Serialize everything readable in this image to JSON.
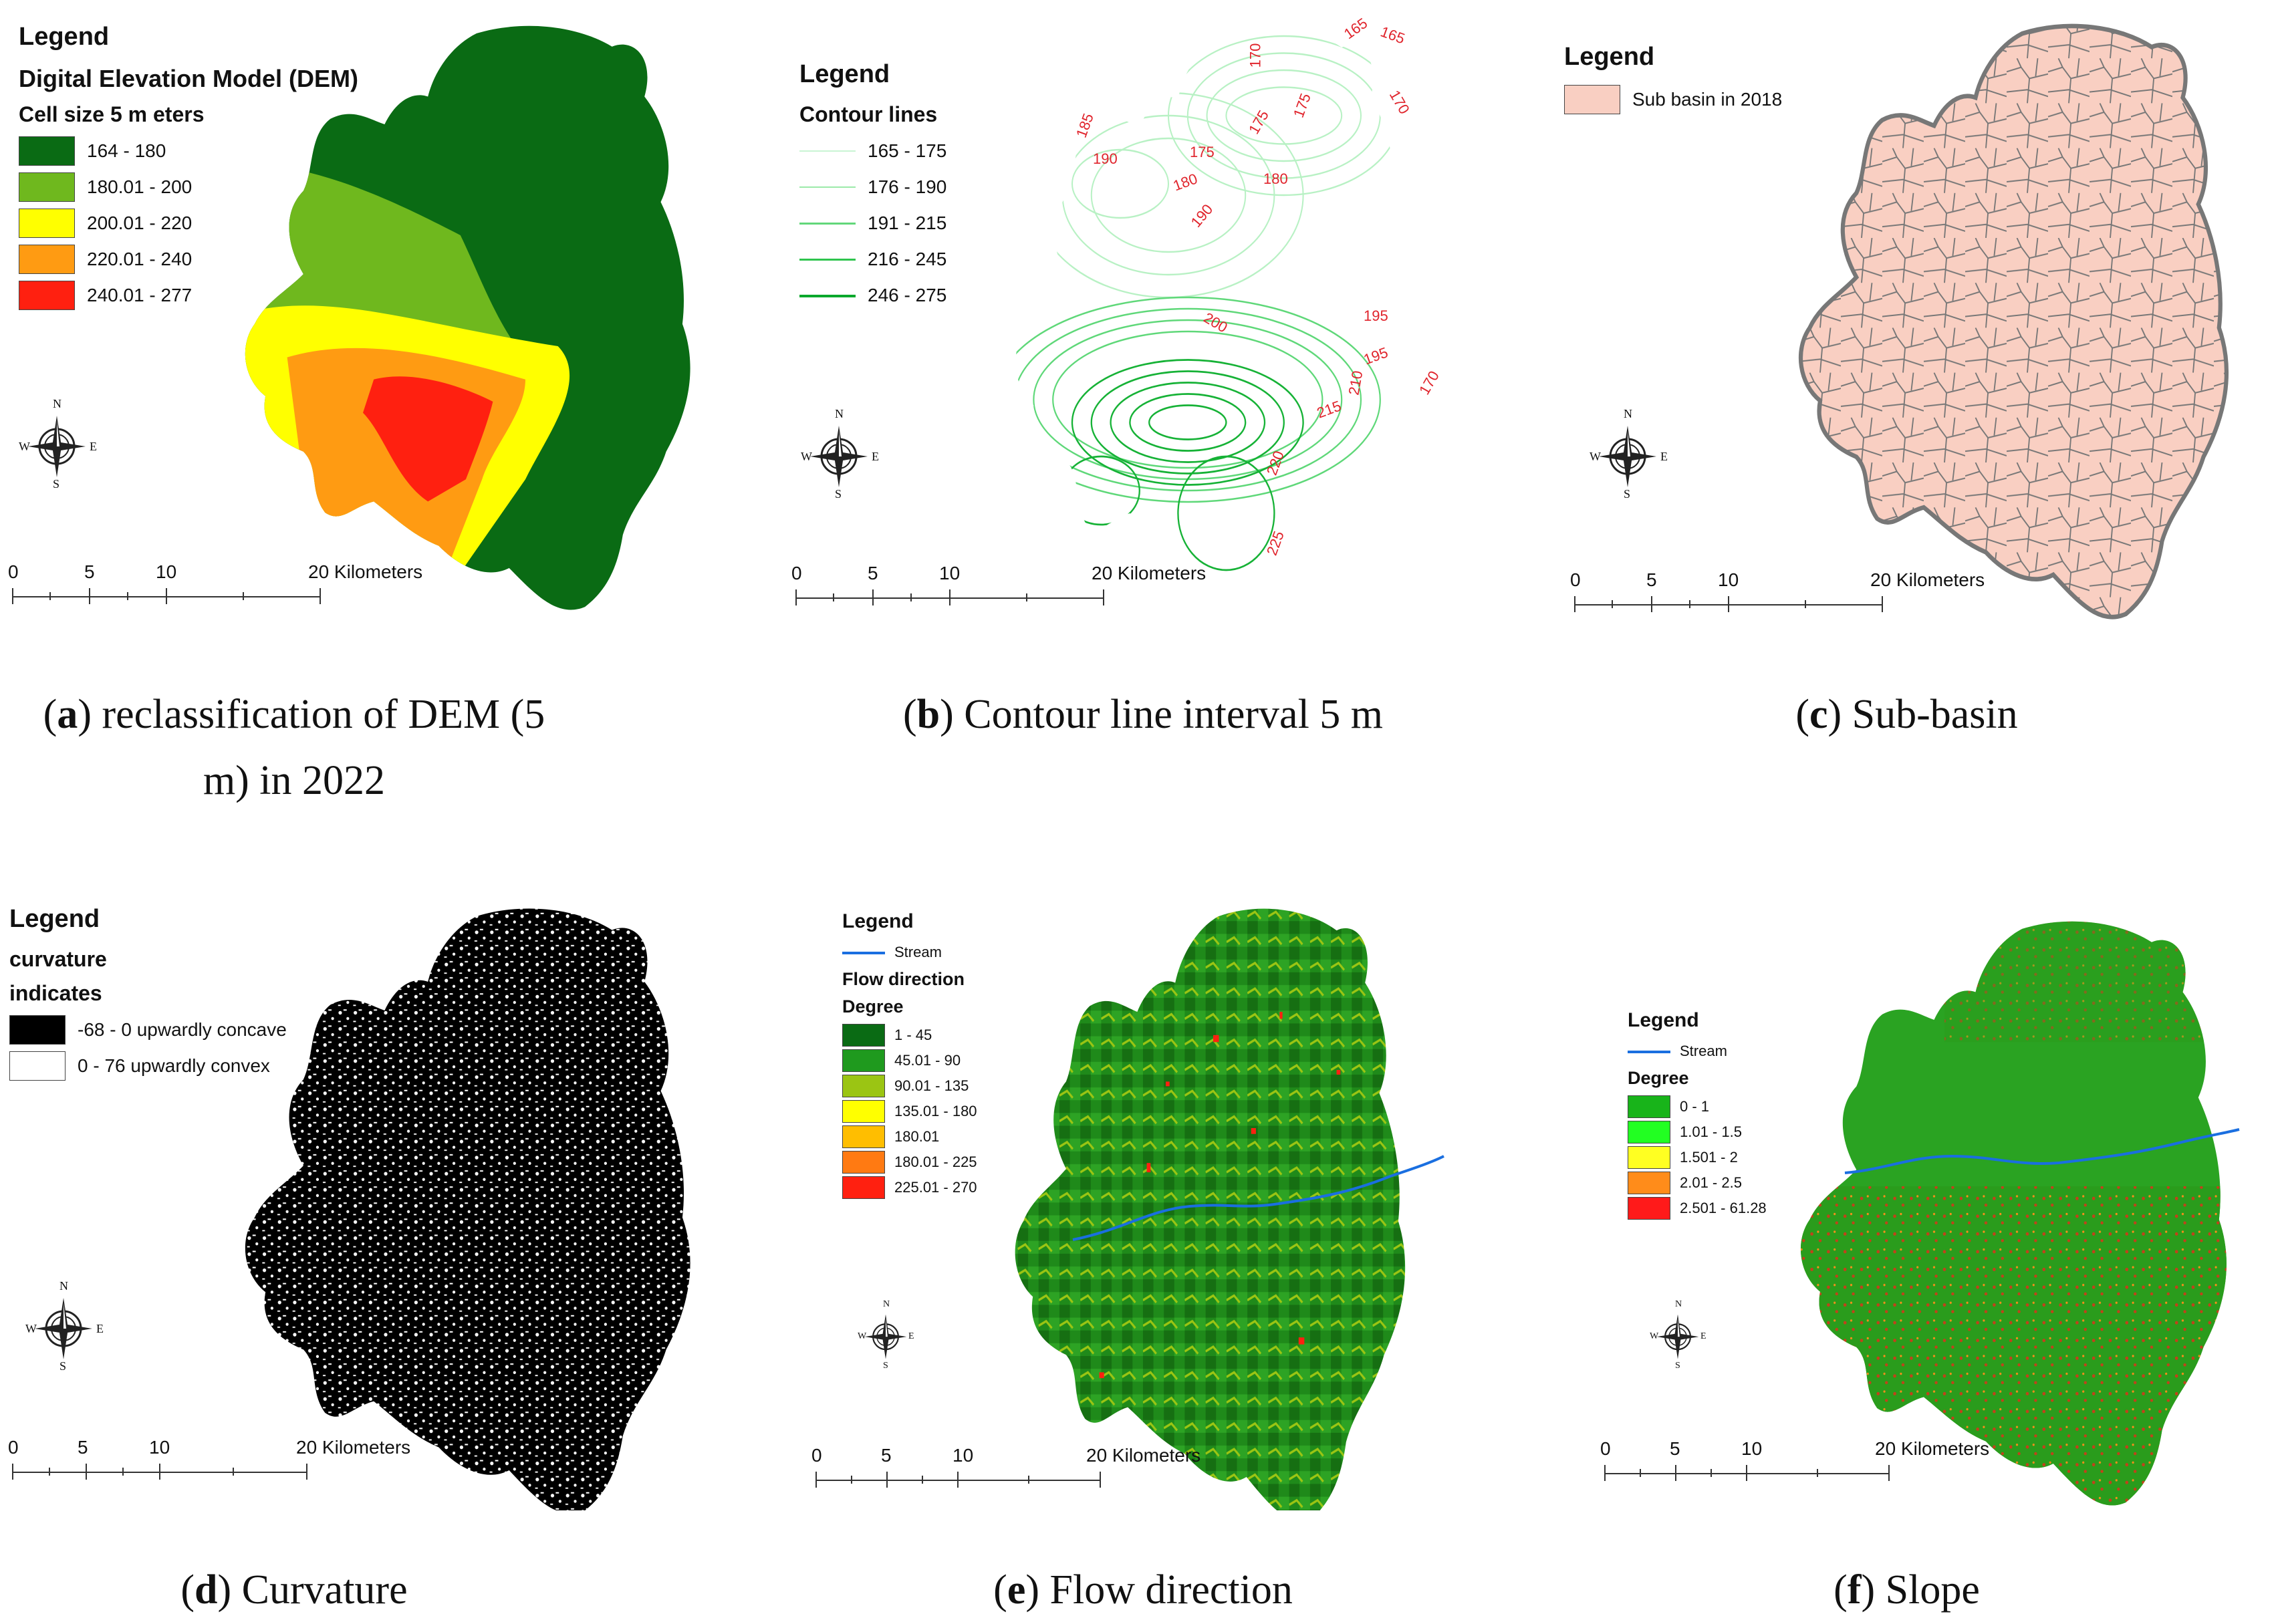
{
  "panels": [
    {
      "id": "a",
      "legend_title": "Legend",
      "subtitle": "Digital Elevation Model (DEM)",
      "subtitle2": "Cell size 5 m eters",
      "items": [
        {
          "label": "164 - 180",
          "color": "#0a6b14"
        },
        {
          "label": "180.01 - 200",
          "color": "#6fb81e"
        },
        {
          "label": "200.01 - 220",
          "color": "#ffff00"
        },
        {
          "label": "220.01 - 240",
          "color": "#ff9b12"
        },
        {
          "label": "240.01 - 277",
          "color": "#ff2010"
        }
      ],
      "scale": {
        "ticks": [
          "0",
          "5",
          "10",
          "20 Kilometers"
        ]
      },
      "compass": {
        "n": "N",
        "s": "S",
        "e": "E",
        "w": "W"
      },
      "caption_letter": "a",
      "caption_text_line1": ") reclassification of DEM (5",
      "caption_text_line2": "m) in 2022"
    },
    {
      "id": "b",
      "legend_title": "Legend",
      "subtitle": "Contour lines",
      "items": [
        {
          "label": "165 - 175",
          "color": "#c9f5d4"
        },
        {
          "label": "176 - 190",
          "color": "#9ceaa9"
        },
        {
          "label": "191 - 215",
          "color": "#62d77a"
        },
        {
          "label": "216 - 245",
          "color": "#2fc44e"
        },
        {
          "label": "246 - 275",
          "color": "#0aa82c"
        }
      ],
      "contour_labels": [
        "165",
        "165",
        "170",
        "170",
        "175",
        "175",
        "180",
        "180",
        "185",
        "190",
        "190",
        "195",
        "195",
        "200",
        "210",
        "215",
        "220",
        "225",
        "175",
        "170"
      ],
      "scale": {
        "ticks": [
          "0",
          "5",
          "10",
          "20 Kilometers"
        ]
      },
      "compass": {
        "n": "N",
        "s": "S",
        "e": "E",
        "w": "W"
      },
      "caption_letter": "b",
      "caption_text_line1": ") Contour line interval 5 m"
    },
    {
      "id": "c",
      "legend_title": "Legend",
      "items": [
        {
          "label": "Sub basin in 2018",
          "color": "#f9cfc2"
        }
      ],
      "scale": {
        "ticks": [
          "0",
          "5",
          "10",
          "20 Kilometers"
        ]
      },
      "compass": {
        "n": "N",
        "s": "S",
        "e": "E",
        "w": "W"
      },
      "caption_letter": "c",
      "caption_text_line1": ") Sub-basin"
    },
    {
      "id": "d",
      "legend_title": "Legend",
      "subtitle": "curvature",
      "subtitle2": "indicates",
      "items": [
        {
          "label": "-68 - 0 upwardly concave",
          "color": "#000000"
        },
        {
          "label": "0 - 76 upwardly convex",
          "color": "#ffffff"
        }
      ],
      "scale": {
        "ticks": [
          "0",
          "5",
          "10",
          "20 Kilometers"
        ]
      },
      "compass": {
        "n": "N",
        "s": "S",
        "e": "E",
        "w": "W"
      },
      "caption_letter": "d",
      "caption_text_line1": ") Curvature"
    },
    {
      "id": "e",
      "legend_title": "Legend",
      "stream_label": "Stream",
      "subtitle": "Flow direction",
      "subtitle2": "Degree",
      "items": [
        {
          "label": "1 - 45",
          "color": "#0a6b14"
        },
        {
          "label": "45.01 - 90",
          "color": "#1f9a1e"
        },
        {
          "label": "90.01 - 135",
          "color": "#9bc513"
        },
        {
          "label": "135.01 - 180",
          "color": "#ffff00"
        },
        {
          "label": "180.01",
          "color": "#ffbe00"
        },
        {
          "label": "180.01 - 225",
          "color": "#ff7a12"
        },
        {
          "label": "225.01 - 270",
          "color": "#ff2010"
        }
      ],
      "scale": {
        "ticks": [
          "0",
          "5",
          "10",
          "20 Kilometers"
        ]
      },
      "compass": {
        "n": "N",
        "s": "S",
        "e": "E",
        "w": "W"
      },
      "caption_letter": "e",
      "caption_text_line1": ") Flow direction"
    },
    {
      "id": "f",
      "legend_title": "Legend",
      "stream_label": "Stream",
      "subtitle": "Degree",
      "items": [
        {
          "label": "0 - 1",
          "color": "#18b41a"
        },
        {
          "label": "1.01 - 1.5",
          "color": "#22ff22"
        },
        {
          "label": "1.501 - 2",
          "color": "#ffff22"
        },
        {
          "label": "2.01 - 2.5",
          "color": "#ff8c1a"
        },
        {
          "label": "2.501 - 61.28",
          "color": "#ff1a1a"
        }
      ],
      "scale": {
        "ticks": [
          "0",
          "5",
          "10",
          "20 Kilometers"
        ]
      },
      "compass": {
        "n": "N",
        "s": "S",
        "e": "E",
        "w": "W"
      },
      "caption_letter": "f",
      "caption_text_line1": ") Slope"
    }
  ]
}
